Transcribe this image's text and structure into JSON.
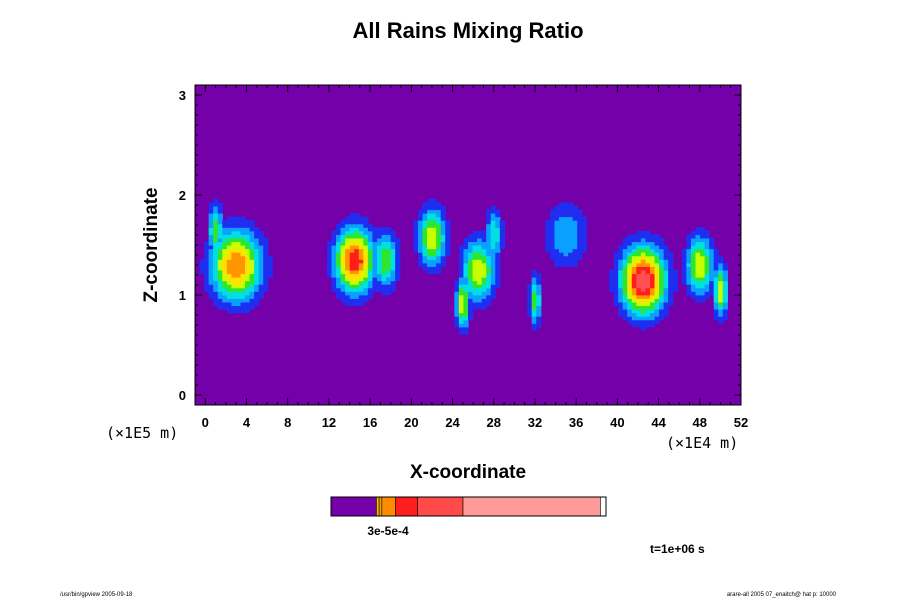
{
  "chart_data": {
    "type": "heatmap",
    "title": "All Rains Mixing Ratio",
    "xlabel": "X-coordinate",
    "ylabel": "Z-coordinate",
    "x_unit_label": "(×1E4 m)",
    "z_unit_label": "(×1E5 m)",
    "xlim": [
      -1,
      52
    ],
    "ylim": [
      -0.1,
      3.1
    ],
    "x_ticks": [
      "0",
      "4",
      "8",
      "12",
      "16",
      "20",
      "24",
      "28",
      "32",
      "36",
      "40",
      "44",
      "48",
      "52"
    ],
    "y_ticks": [
      "0",
      "1",
      "2",
      "3"
    ],
    "background_color": "#7300a8",
    "color_levels": [
      "#7300a8",
      "#1f2ef0",
      "#0aa0ff",
      "#00e0e0",
      "#2ee62e",
      "#c8ff00",
      "#ffe000",
      "#ff9600",
      "#ff1e1e",
      "#ff5050",
      "#ff9a9a"
    ],
    "colorbar": {
      "label": "3e-5e-4",
      "colors": [
        "#7300a8",
        "#ffb400",
        "#f0a000",
        "#ff8c00",
        "#ff1e1e",
        "#ff4a4a",
        "#ff9a9a"
      ],
      "fractions": [
        0.165,
        0.01,
        0.01,
        0.05,
        0.08,
        0.165,
        0.5
      ]
    },
    "features": [
      {
        "x": 1,
        "z": 1.65,
        "size": 0.5,
        "peak": 5
      },
      {
        "x": 3,
        "z": 1.3,
        "size": 1.8,
        "peak": 8
      },
      {
        "x": 14.5,
        "z": 1.35,
        "size": 1.4,
        "peak": 9
      },
      {
        "x": 17.5,
        "z": 1.35,
        "size": 0.9,
        "peak": 5
      },
      {
        "x": 22,
        "z": 1.58,
        "size": 1.0,
        "peak": 6
      },
      {
        "x": 26.5,
        "z": 1.25,
        "size": 1.2,
        "peak": 6
      },
      {
        "x": 25,
        "z": 0.92,
        "size": 0.5,
        "peak": 6
      },
      {
        "x": 32,
        "z": 0.95,
        "size": 0.4,
        "peak": 5
      },
      {
        "x": 28,
        "z": 1.6,
        "size": 0.6,
        "peak": 4
      },
      {
        "x": 42.5,
        "z": 1.15,
        "size": 1.6,
        "peak": 10
      },
      {
        "x": 48,
        "z": 1.3,
        "size": 1.0,
        "peak": 6
      },
      {
        "x": 50,
        "z": 1.05,
        "size": 0.5,
        "peak": 6
      },
      {
        "x": 35,
        "z": 1.6,
        "size": 1.5,
        "peak": 3
      }
    ],
    "time_label": "t=1e+06 s"
  },
  "footer": {
    "left": "/usr/bin/gpview 2005-09-18",
    "right": "arare-all  2005 07_enaitch@ hat p: 10000"
  }
}
